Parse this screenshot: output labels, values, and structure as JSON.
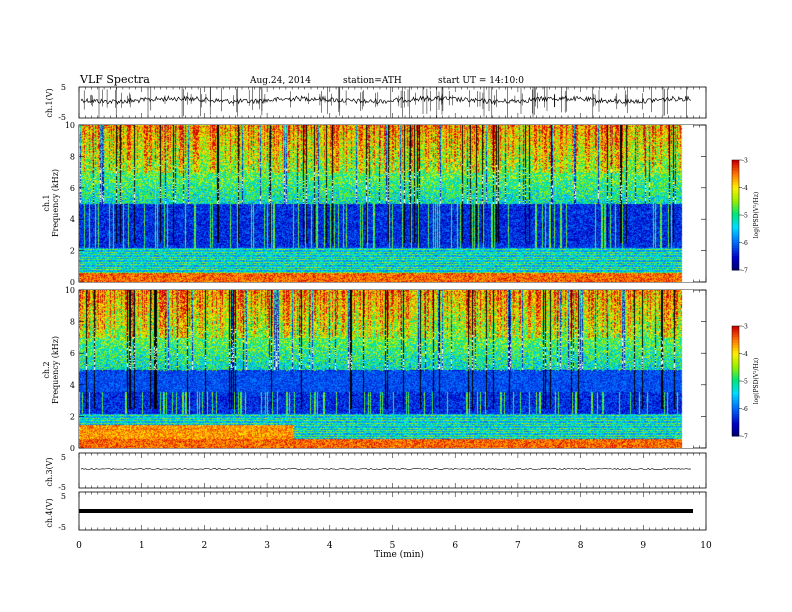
{
  "header": {
    "title": "VLF  Spectra",
    "date": "Aug.24, 2014",
    "station": "station=ATH",
    "start": "start  UT  =    14:10:0"
  },
  "chart_data": [
    {
      "type": "line",
      "panel": "ch1-waveform",
      "ylabel": "ch.1(V)",
      "ylim": [
        -5,
        5
      ],
      "yticks": [
        "5",
        "-5"
      ],
      "xlim": [
        0,
        10
      ]
    },
    {
      "type": "heatmap",
      "panel": "ch1-spectrogram",
      "ylabel": "ch.1\nFrequency (kHz)",
      "ylim": [
        0,
        10
      ],
      "yticks": [
        "0",
        "2",
        "4",
        "6",
        "8",
        "10"
      ],
      "xlim": [
        0,
        10
      ],
      "colorbar": {
        "label": "log(PSD(V²/Hz)",
        "range": [
          -7,
          -3
        ],
        "ticks": [
          "-3",
          "-4",
          "-5",
          "-6",
          "-7"
        ]
      },
      "data_end_min": 9.8,
      "bands_khz": {
        "noise_low": [
          2.2,
          5.0
        ],
        "high": [
          5.0,
          10.0
        ]
      }
    },
    {
      "type": "heatmap",
      "panel": "ch2-spectrogram",
      "ylabel": "ch.2\nFrequency (kHz)",
      "ylim": [
        0,
        10
      ],
      "yticks": [
        "0",
        "2",
        "4",
        "6",
        "8",
        "10"
      ],
      "xlim": [
        0,
        10
      ],
      "colorbar": {
        "label": "log(PSD(V²/Hz)",
        "range": [
          -7,
          -3
        ],
        "ticks": [
          "-3",
          "-4",
          "-5",
          "-6",
          "-7"
        ]
      },
      "data_end_min": 9.8
    },
    {
      "type": "line",
      "panel": "ch3-waveform",
      "ylabel": "ch.3(V)",
      "ylim": [
        -5,
        5
      ],
      "yticks": [
        "5",
        "-5"
      ],
      "xlim": [
        0,
        10
      ]
    },
    {
      "type": "line",
      "panel": "ch4-waveform",
      "ylabel": "ch.4(V)",
      "ylim": [
        -5,
        5
      ],
      "yticks": [
        "5",
        "-5"
      ],
      "xlim": [
        0,
        10
      ]
    }
  ],
  "xaxis": {
    "label": "Time  (min)",
    "ticks": [
      "0",
      "1",
      "2",
      "3",
      "4",
      "5",
      "6",
      "7",
      "8",
      "9",
      "10"
    ]
  },
  "colors": {
    "low": "#00008b",
    "mid": "#00c8ff",
    "green": "#00e676",
    "yellow": "#ffff00",
    "red": "#e00000"
  }
}
